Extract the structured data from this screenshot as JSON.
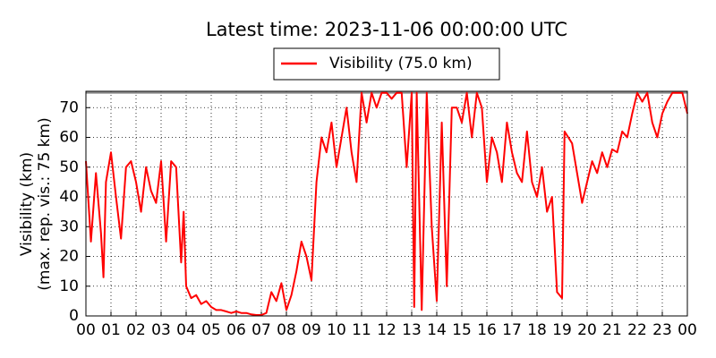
{
  "chart_data": {
    "type": "line",
    "title": "Latest time: 2023-11-06 00:00:00 UTC",
    "ylabel": [
      "Visibility (km)",
      "(max. rep. vis.: 75 km)"
    ],
    "x": [
      0,
      0.2,
      0.4,
      0.6,
      0.7,
      0.8,
      1.0,
      1.2,
      1.4,
      1.6,
      1.8,
      2.0,
      2.2,
      2.4,
      2.6,
      2.8,
      3.0,
      3.2,
      3.4,
      3.6,
      3.8,
      3.9,
      4.0,
      4.2,
      4.4,
      4.6,
      4.8,
      5.0,
      5.2,
      5.4,
      5.6,
      5.8,
      6.0,
      6.2,
      6.4,
      6.6,
      6.8,
      7.0,
      7.2,
      7.4,
      7.6,
      7.8,
      8.0,
      8.2,
      8.4,
      8.6,
      8.8,
      9.0,
      9.2,
      9.4,
      9.6,
      9.8,
      10.0,
      10.2,
      10.4,
      10.6,
      10.8,
      11.0,
      11.2,
      11.4,
      11.6,
      11.8,
      12.0,
      12.2,
      12.4,
      12.6,
      12.8,
      13.0,
      13.1,
      13.2,
      13.4,
      13.6,
      13.8,
      14.0,
      14.2,
      14.4,
      14.6,
      14.8,
      15.0,
      15.2,
      15.4,
      15.6,
      15.8,
      16.0,
      16.2,
      16.4,
      16.6,
      16.8,
      17.0,
      17.2,
      17.4,
      17.6,
      17.8,
      18.0,
      18.2,
      18.4,
      18.6,
      18.8,
      19.0,
      19.1,
      19.4,
      19.6,
      19.8,
      20.0,
      20.2,
      20.4,
      20.6,
      20.8,
      21.0,
      21.2,
      21.4,
      21.6,
      21.8,
      22.0,
      22.2,
      22.4,
      22.6,
      22.8,
      23.0,
      23.2,
      23.4,
      23.6,
      23.8,
      24.0
    ],
    "series": [
      {
        "name": "Visibility (75.0 km)",
        "color": "#ff0000",
        "values": [
          52,
          25,
          48,
          28,
          13,
          45,
          55,
          40,
          26,
          50,
          52,
          45,
          35,
          50,
          42,
          38,
          52,
          25,
          52,
          50,
          18,
          35,
          10,
          6,
          7,
          4,
          5,
          3,
          2,
          2,
          1.5,
          1,
          1.5,
          1,
          1,
          0.5,
          0.3,
          0.3,
          1,
          8,
          5,
          11,
          2,
          7,
          15,
          25,
          20,
          12,
          45,
          60,
          55,
          65,
          50,
          60,
          70,
          55,
          45,
          75,
          65,
          75,
          70,
          75,
          75,
          73,
          75,
          75,
          50,
          75,
          3,
          75,
          2,
          75,
          30,
          5,
          65,
          10,
          70,
          70,
          65,
          75,
          60,
          75,
          70,
          45,
          60,
          55,
          45,
          65,
          55,
          48,
          45,
          62,
          45,
          40,
          50,
          35,
          40,
          8,
          6,
          62,
          58,
          48,
          38,
          45,
          52,
          48,
          55,
          50,
          56,
          55,
          62,
          60,
          68,
          75,
          72,
          75,
          65,
          60,
          68,
          72,
          75,
          75,
          75,
          68
        ]
      }
    ],
    "reference_line": 75,
    "xlim": [
      0,
      24
    ],
    "ylim": [
      0,
      75.5
    ],
    "xticks": [
      {
        "value": 0,
        "label": "00"
      },
      {
        "value": 1,
        "label": "01"
      },
      {
        "value": 2,
        "label": "02"
      },
      {
        "value": 3,
        "label": "03"
      },
      {
        "value": 4,
        "label": "04"
      },
      {
        "value": 5,
        "label": "05"
      },
      {
        "value": 6,
        "label": "06"
      },
      {
        "value": 7,
        "label": "07"
      },
      {
        "value": 8,
        "label": "08"
      },
      {
        "value": 9,
        "label": "09"
      },
      {
        "value": 10,
        "label": "10"
      },
      {
        "value": 11,
        "label": "11"
      },
      {
        "value": 12,
        "label": "12"
      },
      {
        "value": 13,
        "label": "13"
      },
      {
        "value": 14,
        "label": "14"
      },
      {
        "value": 15,
        "label": "15"
      },
      {
        "value": 16,
        "label": "16"
      },
      {
        "value": 17,
        "label": "17"
      },
      {
        "value": 18,
        "label": "18"
      },
      {
        "value": 19,
        "label": "19"
      },
      {
        "value": 20,
        "label": "20"
      },
      {
        "value": 21,
        "label": "21"
      },
      {
        "value": 22,
        "label": "22"
      },
      {
        "value": 23,
        "label": "23"
      },
      {
        "value": 24,
        "label": "00"
      }
    ],
    "yticks": [
      0,
      10,
      20,
      30,
      40,
      50,
      60,
      70
    ],
    "grid": true
  }
}
